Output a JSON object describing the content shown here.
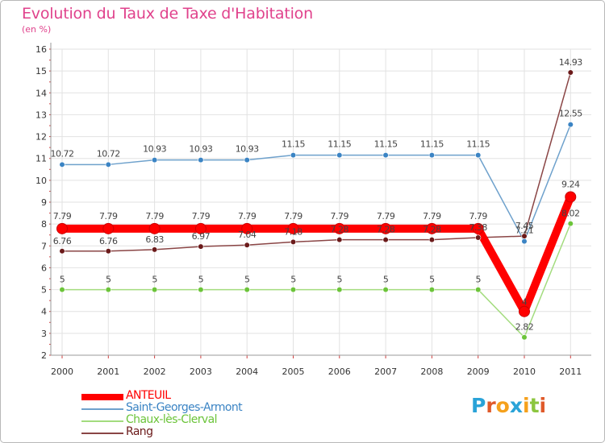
{
  "header": {
    "title": "Evolution du Taux de Taxe d'Habitation",
    "subtitle": "(en %)"
  },
  "logo": {
    "text": "Proxiti",
    "letter_colors": [
      "#2aa3d8",
      "#e05a2a",
      "#f5a11c",
      "#2aa3d8",
      "#f5a11c",
      "#8cc63f",
      "#e05a2a"
    ]
  },
  "chart_data": {
    "type": "line",
    "title": "Evolution du Taux de Taxe d'Habitation",
    "ylabel": "(en %)",
    "xlabel": "",
    "categories": [
      "2000",
      "2001",
      "2002",
      "2003",
      "2004",
      "2005",
      "2006",
      "2007",
      "2008",
      "2009",
      "2010",
      "2011"
    ],
    "ylim": [
      2,
      16
    ],
    "yticks": [
      2,
      3,
      4,
      5,
      6,
      7,
      8,
      9,
      10,
      11,
      12,
      13,
      14,
      15,
      16
    ],
    "grid": true,
    "legend_position": "bottom-left",
    "series": [
      {
        "name": "ANTEUIL",
        "color": "#ff0000",
        "values": [
          7.79,
          7.79,
          7.79,
          7.79,
          7.79,
          7.79,
          7.79,
          7.79,
          7.79,
          7.79,
          4,
          9.24
        ],
        "labels": [
          "7.79",
          "7.79",
          "7.79",
          "7.79",
          "7.79",
          "7.79",
          "7.79",
          "7.79",
          "7.79",
          "7.79",
          "4",
          "9.24"
        ]
      },
      {
        "name": "Saint-Georges-Armont",
        "color": "#6ea1cc",
        "marker_color": "#3b84c4",
        "values": [
          10.72,
          10.72,
          10.93,
          10.93,
          10.93,
          11.15,
          11.15,
          11.15,
          11.15,
          11.15,
          7.21,
          12.55
        ],
        "labels": [
          "10.72",
          "10.72",
          "10.93",
          "10.93",
          "10.93",
          "11.15",
          "11.15",
          "11.15",
          "11.15",
          "11.15",
          "7.21",
          "12.55"
        ]
      },
      {
        "name": "Chaux-lès-Clerval",
        "color": "#a3dc7e",
        "marker_color": "#6cc43a",
        "values": [
          5,
          5,
          5,
          5,
          5,
          5,
          5,
          5,
          5,
          5,
          2.82,
          8.02
        ],
        "labels": [
          "5",
          "5",
          "5",
          "5",
          "5",
          "5",
          "5",
          "5",
          "5",
          "5",
          "2.82",
          "8.02"
        ]
      },
      {
        "name": "Rang",
        "color": "#8a4545",
        "marker_color": "#6b1a1a",
        "values": [
          6.76,
          6.76,
          6.83,
          6.97,
          7.04,
          7.18,
          7.28,
          7.28,
          7.28,
          7.38,
          7.45,
          14.93
        ],
        "labels": [
          "6.76",
          "6.76",
          "6.83",
          "6.97",
          "7.04",
          "7.18",
          "7.28",
          "7.28",
          "7.28",
          "7.38",
          "7.45",
          "14.93"
        ]
      }
    ]
  }
}
